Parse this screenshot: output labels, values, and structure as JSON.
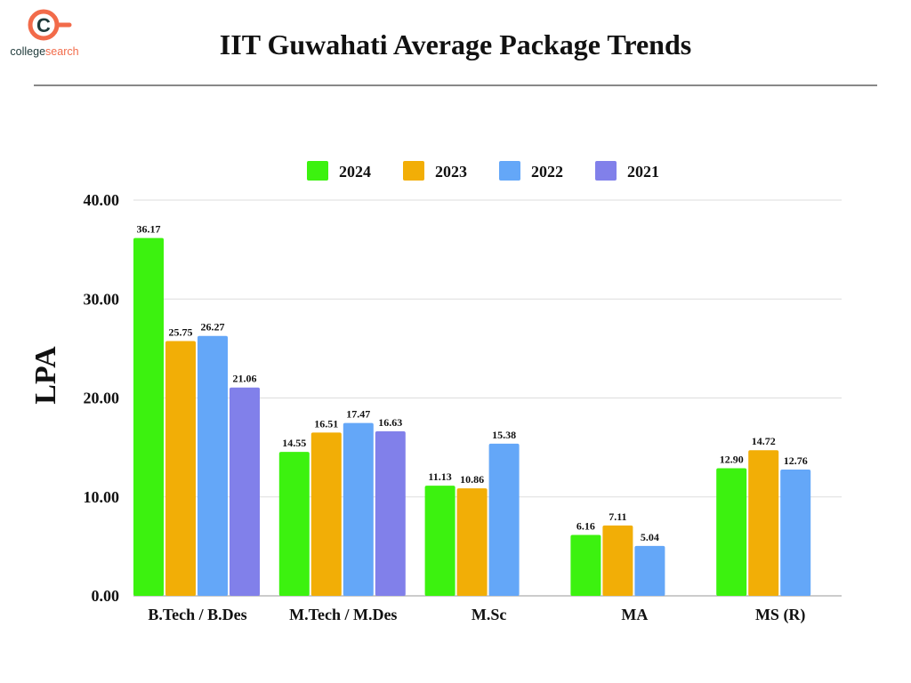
{
  "logo": {
    "text_dark": "college",
    "text_accent": "search",
    "letter": "C",
    "accent_color": "#f26b4a",
    "dark_color": "#1f3a3a"
  },
  "chart_data": {
    "type": "bar",
    "title": "IIT Guwahati Average Package Trends",
    "xlabel": "",
    "ylabel": "LPA",
    "ylim": [
      0,
      40
    ],
    "yticks": [
      "0.00",
      "10.00",
      "20.00",
      "30.00",
      "40.00"
    ],
    "grid": true,
    "legend_position": "top",
    "categories": [
      "B.Tech / B.Des",
      "M.Tech / M.Des",
      "M.Sc",
      "MA",
      "MS (R)"
    ],
    "series": [
      {
        "name": "2024",
        "color": "#3cf20f",
        "values": [
          36.17,
          14.55,
          11.13,
          6.16,
          12.9
        ]
      },
      {
        "name": "2023",
        "color": "#f2ae06",
        "values": [
          25.75,
          16.51,
          10.86,
          7.11,
          14.72
        ]
      },
      {
        "name": "2022",
        "color": "#64a7f8",
        "values": [
          26.27,
          17.47,
          15.38,
          5.04,
          12.76
        ]
      },
      {
        "name": "2021",
        "color": "#8180ea",
        "values": [
          21.06,
          16.63,
          null,
          null,
          null
        ]
      }
    ]
  }
}
